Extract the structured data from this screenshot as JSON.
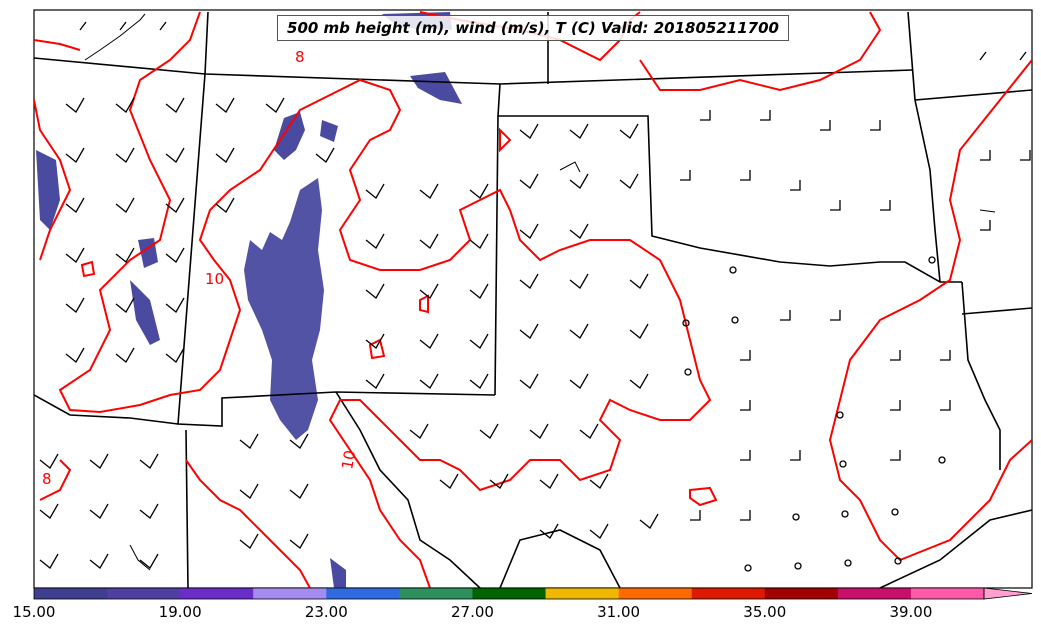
{
  "map": {
    "title": "500 mb height (m), wind (m/s), T (C) Valid: 201805211700",
    "contour_color": "#ff0000",
    "contour_labels": [
      "10",
      "10",
      "8",
      "8"
    ],
    "shaded_field_color": "#4a4aa0"
  },
  "colorbar": {
    "colors": [
      "#3f3f8f",
      "#4f3fa0",
      "#6a2ec8",
      "#a58cf0",
      "#2f6ae0",
      "#2e8f5f",
      "#006400",
      "#f0b800",
      "#ff6a00",
      "#dd1a00",
      "#a00000",
      "#c8106a",
      "#ff5aa8",
      "#ffa0d0"
    ],
    "tick_labels": [
      "15.00",
      "19.00",
      "23.00",
      "27.00",
      "31.00",
      "35.00",
      "39.00"
    ]
  }
}
